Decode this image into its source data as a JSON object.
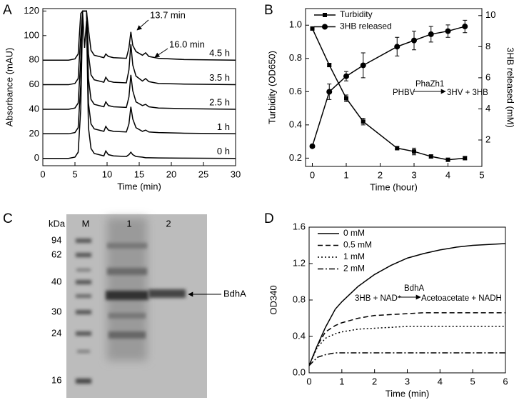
{
  "chart_data": [
    {
      "type": "line",
      "label": "A",
      "xlabel": "Time (min)",
      "ylabel": "Absorbance (mAU)",
      "xlim": [
        0,
        30
      ],
      "xticks": [
        0,
        5,
        10,
        15,
        20,
        25,
        30
      ],
      "ylim": [
        -6,
        122
      ],
      "yticks": [
        0,
        20,
        40,
        60,
        80,
        100,
        120
      ],
      "legend": "inline",
      "x": [
        0,
        4,
        5,
        5.5,
        5.9,
        6.2,
        6.5,
        6.8,
        7.1,
        7.5,
        8,
        9.5,
        9.8,
        10.2,
        11,
        13,
        13.4,
        13.7,
        14,
        14.5,
        15.5,
        16,
        16.5,
        18,
        22,
        30
      ],
      "series": [
        {
          "name": "0 h",
          "color": "#000000",
          "values": [
            0,
            0,
            1,
            5,
            40,
            118,
            90,
            112,
            25,
            8,
            4,
            2,
            6,
            3,
            2,
            1.5,
            3,
            5,
            3,
            1.5,
            1,
            0.5,
            0.5,
            0.3,
            0.2,
            0
          ]
        },
        {
          "name": "1 h",
          "color": "#000000",
          "values": [
            20,
            20,
            21,
            25,
            60,
            120,
            120,
            120,
            45,
            28,
            24,
            22,
            26,
            23,
            22,
            21.5,
            28,
            42,
            32,
            25,
            22,
            23,
            21.5,
            21,
            20.5,
            20
          ]
        },
        {
          "name": "2.5 h",
          "color": "#000000",
          "values": [
            40,
            40,
            41,
            45,
            80,
            120,
            120,
            120,
            65,
            48,
            44,
            42,
            46,
            43,
            42,
            41.5,
            50,
            68,
            55,
            46,
            43,
            44,
            42,
            41,
            40.5,
            40
          ]
        },
        {
          "name": "3.5 h",
          "color": "#000000",
          "values": [
            60,
            60,
            61,
            65,
            100,
            120,
            120,
            120,
            85,
            68,
            64,
            62,
            66,
            63,
            62,
            61.5,
            72,
            93,
            76,
            67,
            63,
            65,
            62.5,
            61,
            60.5,
            60
          ]
        },
        {
          "name": "4.5 h",
          "color": "#000000",
          "values": [
            80,
            80,
            81,
            85,
            118,
            120,
            120,
            120,
            105,
            88,
            84,
            82,
            85,
            83,
            82,
            81.5,
            90,
            103,
            92,
            87,
            84,
            86,
            83,
            81.5,
            80.5,
            80
          ]
        }
      ],
      "annotations": [
        "13.7 min",
        "16.0 min"
      ]
    },
    {
      "type": "line",
      "label": "B",
      "xlabel": "Time (hour)",
      "ylabel": "Turbidity (OD650)",
      "y2label": "3HB released (mM)",
      "xlim": [
        -0.2,
        5
      ],
      "xticks": [
        0,
        1,
        2,
        3,
        4,
        5
      ],
      "ylim": [
        0.15,
        1.1
      ],
      "yticks": [
        0.2,
        0.4,
        0.6,
        0.8,
        {
          "value": 1.0,
          "label": "1.0"
        }
      ],
      "y2lim": [
        0.3,
        10.45
      ],
      "y2ticks": [
        2,
        4,
        6,
        8,
        10
      ],
      "legend": "upper left",
      "x": [
        0,
        0.5,
        1,
        1.5,
        2.5,
        3,
        3.5,
        4,
        4.5
      ],
      "series": [
        {
          "name": "Turbidity",
          "color": "#000000",
          "marker": "square",
          "values": [
            0.98,
            0.76,
            0.56,
            0.42,
            0.26,
            0.24,
            0.21,
            0.19,
            0.2
          ],
          "errors": [
            0.01,
            0.01,
            0.02,
            0.02,
            0.01,
            0.02,
            0.01,
            0.01,
            0.01
          ]
        },
        {
          "name": "3HB released",
          "color": "#000000",
          "marker": "circle",
          "axis": "y2",
          "values": [
            1.6,
            5.1,
            6.1,
            6.8,
            8.0,
            8.4,
            8.8,
            9.0,
            9.3
          ],
          "errors": [
            0.1,
            0.5,
            0.3,
            0.8,
            0.6,
            0.6,
            0.5,
            0.4,
            0.4
          ]
        }
      ],
      "annotations": [
        "PHBV",
        "PhaZh1",
        "3HV + 3HB"
      ]
    },
    {
      "type": "line",
      "label": "D",
      "xlabel": "Time (min)",
      "ylabel": "OD340",
      "xlim": [
        0,
        6
      ],
      "xticks": [
        0,
        1,
        2,
        3,
        4,
        5,
        6
      ],
      "ylim": [
        0,
        1.6
      ],
      "yticks": [
        {
          "value": 0,
          "label": "0.0"
        },
        0.4,
        0.8,
        1.2,
        1.6
      ],
      "legend": "upper left",
      "x": [
        0,
        0.25,
        0.5,
        0.8,
        1,
        1.5,
        2,
        2.5,
        3,
        3.5,
        4,
        4.5,
        5,
        5.5,
        6
      ],
      "series": [
        {
          "name": "0 mM",
          "color": "#000000",
          "dash": "solid",
          "values": [
            0.08,
            0.3,
            0.5,
            0.7,
            0.78,
            0.95,
            1.08,
            1.18,
            1.26,
            1.31,
            1.35,
            1.38,
            1.4,
            1.41,
            1.42
          ]
        },
        {
          "name": "0.5 mM",
          "color": "#000000",
          "dash": "dashed",
          "values": [
            0.08,
            0.3,
            0.45,
            0.52,
            0.55,
            0.6,
            0.63,
            0.64,
            0.65,
            0.66,
            0.66,
            0.66,
            0.66,
            0.66,
            0.66
          ]
        },
        {
          "name": "1 mM",
          "color": "#000000",
          "dash": "dotted",
          "values": [
            0.08,
            0.28,
            0.38,
            0.43,
            0.45,
            0.48,
            0.49,
            0.5,
            0.51,
            0.51,
            0.51,
            0.51,
            0.51,
            0.51,
            0.51
          ]
        },
        {
          "name": "2 mM",
          "color": "#000000",
          "dash": "dashdot",
          "values": [
            0.08,
            0.17,
            0.2,
            0.22,
            0.22,
            0.22,
            0.22,
            0.22,
            0.22,
            0.22,
            0.22,
            0.22,
            0.22,
            0.22,
            0.22
          ]
        }
      ],
      "annotations": [
        "3HB + NAD⁺",
        "BdhA",
        "Acetoacetate + NADH"
      ]
    }
  ],
  "gel": {
    "label": "C",
    "unit": "kDa",
    "markers": [
      "94",
      "62",
      "40",
      "30",
      "24",
      "16"
    ],
    "lanes": [
      "M",
      "1",
      "2"
    ],
    "band": "BdhA"
  }
}
